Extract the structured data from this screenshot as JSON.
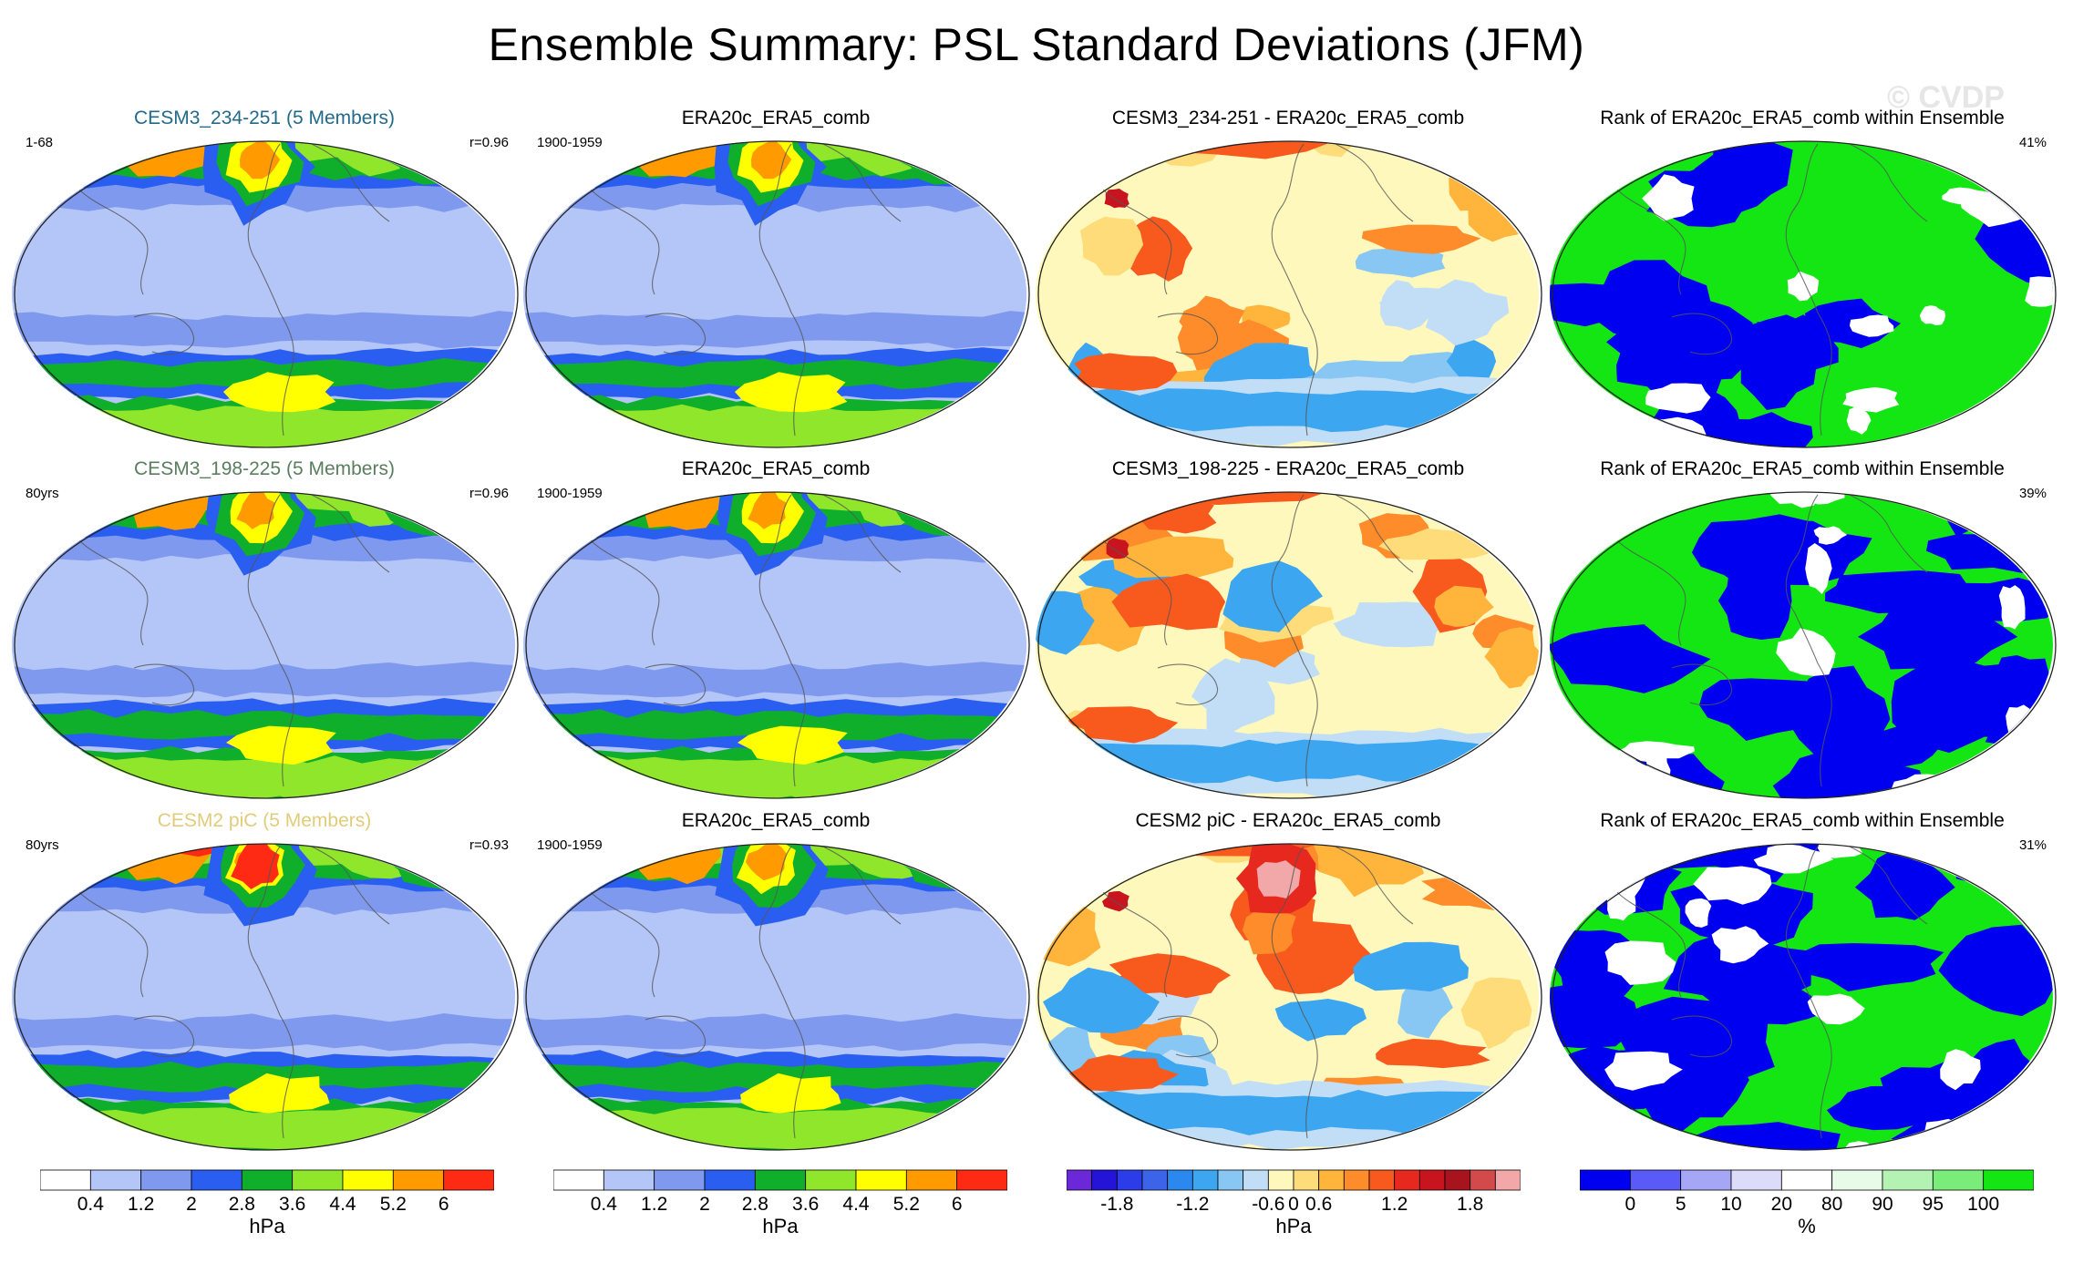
{
  "figure_title": "Ensemble Summary: PSL Standard Deviations (JFM)",
  "watermark": "© CVDP",
  "colors": {
    "title_row1": "#236a8a",
    "title_row2": "#5a7e5e",
    "title_row3": "#e0cc7a",
    "sd_scale": [
      "#ffffff",
      "#b4c5f8",
      "#7f99ee",
      "#2a5ef0",
      "#0fae2b",
      "#8fe62a",
      "#ffff00",
      "#ff9a00",
      "#ff2a14"
    ],
    "diff_scale": [
      "#6a28d8",
      "#2414d8",
      "#2c3ce8",
      "#3c64e8",
      "#2a88ee",
      "#3ca6f0",
      "#88c6f4",
      "#c2def6",
      "#fff8bc",
      "#ffdc7a",
      "#ffb43c",
      "#ff8c2a",
      "#f85a1e",
      "#e6281e",
      "#c8141e",
      "#a8141e",
      "#d24a4a",
      "#f2a8a8"
    ],
    "rank_scale": [
      "#0000f0",
      "#5a5af8",
      "#a6a6f6",
      "#dcdcfa",
      "#ffffff",
      "#e8fae8",
      "#b4f2b4",
      "#7aec7a",
      "#14e614"
    ]
  },
  "chart_data": [
    {
      "type": "heatmap",
      "row": 1,
      "col": 1,
      "title": "CESM3_234-251 (5 Members)",
      "left_note": "1-68",
      "right_note": "r=0.96",
      "variable": "PSL standard deviation",
      "units": "hPa",
      "colorbar": "sd"
    },
    {
      "type": "heatmap",
      "row": 1,
      "col": 2,
      "title": "ERA20c_ERA5_comb",
      "left_note": "1900-1959",
      "right_note": "",
      "variable": "PSL standard deviation",
      "units": "hPa",
      "colorbar": "sd"
    },
    {
      "type": "heatmap",
      "row": 1,
      "col": 3,
      "title": "CESM3_234-251 - ERA20c_ERA5_comb",
      "left_note": "",
      "right_note": "",
      "variable": "PSL standard deviation difference",
      "units": "hPa",
      "colorbar": "diff"
    },
    {
      "type": "heatmap",
      "row": 1,
      "col": 4,
      "title": "Rank of ERA20c_ERA5_comb within Ensemble",
      "left_note": "",
      "right_note": "41%",
      "variable": "rank",
      "units": "%",
      "colorbar": "rank"
    },
    {
      "type": "heatmap",
      "row": 2,
      "col": 1,
      "title": "CESM3_198-225 (5 Members)",
      "left_note": "80yrs",
      "right_note": "r=0.96",
      "variable": "PSL standard deviation",
      "units": "hPa",
      "colorbar": "sd"
    },
    {
      "type": "heatmap",
      "row": 2,
      "col": 2,
      "title": "ERA20c_ERA5_comb",
      "left_note": "1900-1959",
      "right_note": "",
      "variable": "PSL standard deviation",
      "units": "hPa",
      "colorbar": "sd"
    },
    {
      "type": "heatmap",
      "row": 2,
      "col": 3,
      "title": "CESM3_198-225 - ERA20c_ERA5_comb",
      "left_note": "",
      "right_note": "",
      "variable": "PSL standard deviation difference",
      "units": "hPa",
      "colorbar": "diff"
    },
    {
      "type": "heatmap",
      "row": 2,
      "col": 4,
      "title": "Rank of ERA20c_ERA5_comb within Ensemble",
      "left_note": "",
      "right_note": "39%",
      "variable": "rank",
      "units": "%",
      "colorbar": "rank"
    },
    {
      "type": "heatmap",
      "row": 3,
      "col": 1,
      "title": "CESM2 piC (5 Members)",
      "left_note": "80yrs",
      "right_note": "r=0.93",
      "variable": "PSL standard deviation",
      "units": "hPa",
      "colorbar": "sd"
    },
    {
      "type": "heatmap",
      "row": 3,
      "col": 2,
      "title": "ERA20c_ERA5_comb",
      "left_note": "1900-1959",
      "right_note": "",
      "variable": "PSL standard deviation",
      "units": "hPa",
      "colorbar": "sd"
    },
    {
      "type": "heatmap",
      "row": 3,
      "col": 3,
      "title": "CESM2 piC - ERA20c_ERA5_comb",
      "left_note": "",
      "right_note": "",
      "variable": "PSL standard deviation difference",
      "units": "hPa",
      "colorbar": "diff"
    },
    {
      "type": "heatmap",
      "row": 3,
      "col": 4,
      "title": "Rank of ERA20c_ERA5_comb within Ensemble",
      "left_note": "",
      "right_note": "31%",
      "variable": "rank",
      "units": "%",
      "colorbar": "rank"
    }
  ],
  "colorbars": {
    "sd": {
      "levels": [
        0.4,
        1.2,
        2,
        2.8,
        3.6,
        4.4,
        5.2,
        6
      ],
      "tick_labels": [
        "0.4",
        "1.2",
        "2",
        "2.8",
        "3.6",
        "4.4",
        "5.2",
        "6"
      ],
      "units": "hPa"
    },
    "diff": {
      "levels": [
        -2.0,
        -1.8,
        -1.6,
        -1.4,
        -1.2,
        -1.0,
        -0.6,
        -0.3,
        0,
        0.3,
        0.6,
        0.9,
        1.2,
        1.4,
        1.6,
        1.8,
        2.0
      ],
      "tick_labels": [
        "-1.8",
        "-1.2",
        "-0.6",
        "0",
        "0.6",
        "1.2",
        "1.8"
      ],
      "units": "hPa"
    },
    "rank": {
      "levels": [
        0,
        5,
        10,
        20,
        80,
        90,
        95,
        100
      ],
      "tick_labels": [
        "0",
        "5",
        "10",
        "20",
        "80",
        "90",
        "95",
        "100"
      ],
      "units": "%"
    }
  }
}
